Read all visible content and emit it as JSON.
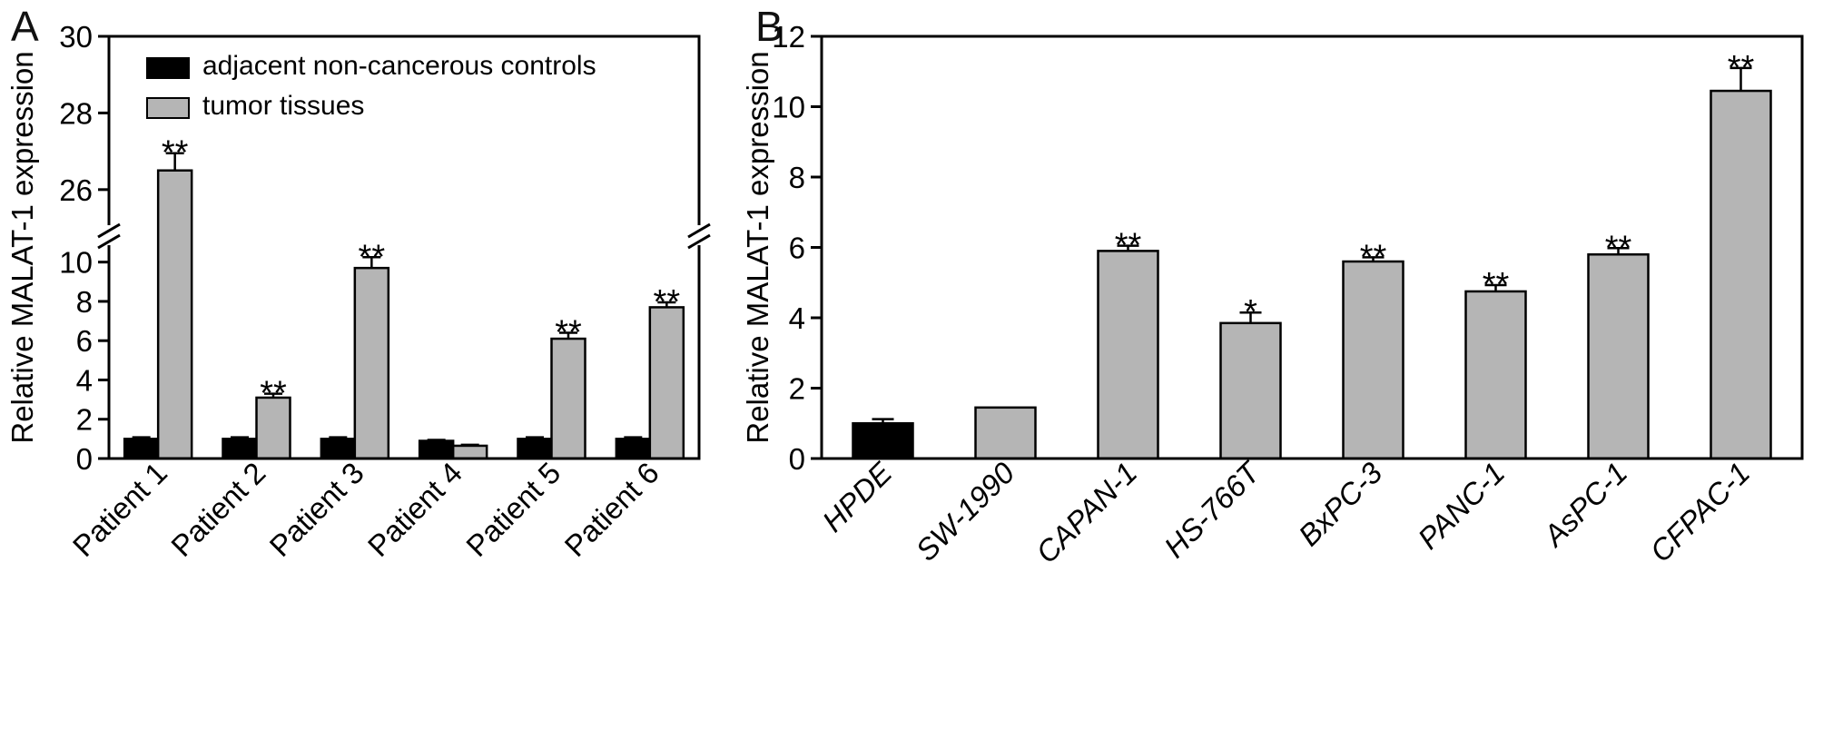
{
  "figure": {
    "background": "#ffffff"
  },
  "panels": [
    {
      "label": "A"
    },
    {
      "label": "B"
    }
  ],
  "chart_data": [
    {
      "type": "bar",
      "panel": "A",
      "title": "",
      "xlabel": "",
      "ylabel": "Relative MALAT-1 expression",
      "categories": [
        "Patient 1",
        "Patient 2",
        "Patient 3",
        "Patient 4",
        "Patient 5",
        "Patient 6"
      ],
      "series": [
        {
          "name": "adjacent non-cancerous controls",
          "color": "#000000",
          "values": [
            1.0,
            1.0,
            1.0,
            0.9,
            1.0,
            1.0
          ],
          "errors": [
            0.08,
            0.08,
            0.08,
            0.05,
            0.08,
            0.08
          ],
          "sig": [
            "",
            "",
            "",
            "",
            "",
            ""
          ]
        },
        {
          "name": "tumor tissues",
          "color": "#b5b5b5",
          "values": [
            26.5,
            3.1,
            9.7,
            0.65,
            6.1,
            7.7
          ],
          "errors": [
            0.45,
            0.2,
            0.55,
            0.05,
            0.3,
            0.25
          ],
          "sig": [
            "**",
            "**",
            "**",
            "",
            "**",
            "**"
          ]
        }
      ],
      "y_axis": {
        "break": true,
        "segments": [
          {
            "min": 0,
            "max": 11,
            "ticks": [
              0,
              2,
              4,
              6,
              8,
              10
            ]
          },
          {
            "min": 25,
            "max": 30,
            "ticks": [
              26,
              28,
              30
            ]
          }
        ]
      },
      "legend": {
        "show": true,
        "position": "top-left"
      },
      "x_tick_style": "normal",
      "bar_edge_color": "#000000",
      "grid": false
    },
    {
      "type": "bar",
      "panel": "B",
      "title": "",
      "xlabel": "",
      "ylabel": "Relative MALAT-1 expression",
      "categories": [
        "HPDE",
        "SW-1990",
        "CAPAN-1",
        "HS-766T",
        "BxPC-3",
        "PANC-1",
        "AsPC-1",
        "CFPAC-1"
      ],
      "series": [
        {
          "name": "",
          "color": "#b5b5b5",
          "colors": [
            "#000000",
            "#b5b5b5",
            "#b5b5b5",
            "#b5b5b5",
            "#b5b5b5",
            "#b5b5b5",
            "#b5b5b5",
            "#b5b5b5"
          ],
          "values": [
            1.0,
            1.45,
            5.9,
            3.85,
            5.6,
            4.75,
            5.8,
            10.45
          ],
          "errors": [
            0.12,
            0,
            0.15,
            0.3,
            0.12,
            0.18,
            0.18,
            0.65
          ],
          "sig": [
            "",
            "",
            "**",
            "*",
            "**",
            "**",
            "**",
            "**"
          ]
        }
      ],
      "y_axis": {
        "break": false,
        "segments": [
          {
            "min": 0,
            "max": 12,
            "ticks": [
              0,
              2,
              4,
              6,
              8,
              10,
              12
            ]
          }
        ]
      },
      "legend": {
        "show": false
      },
      "x_tick_style": "italic",
      "bar_edge_color": "#000000",
      "grid": false
    }
  ]
}
